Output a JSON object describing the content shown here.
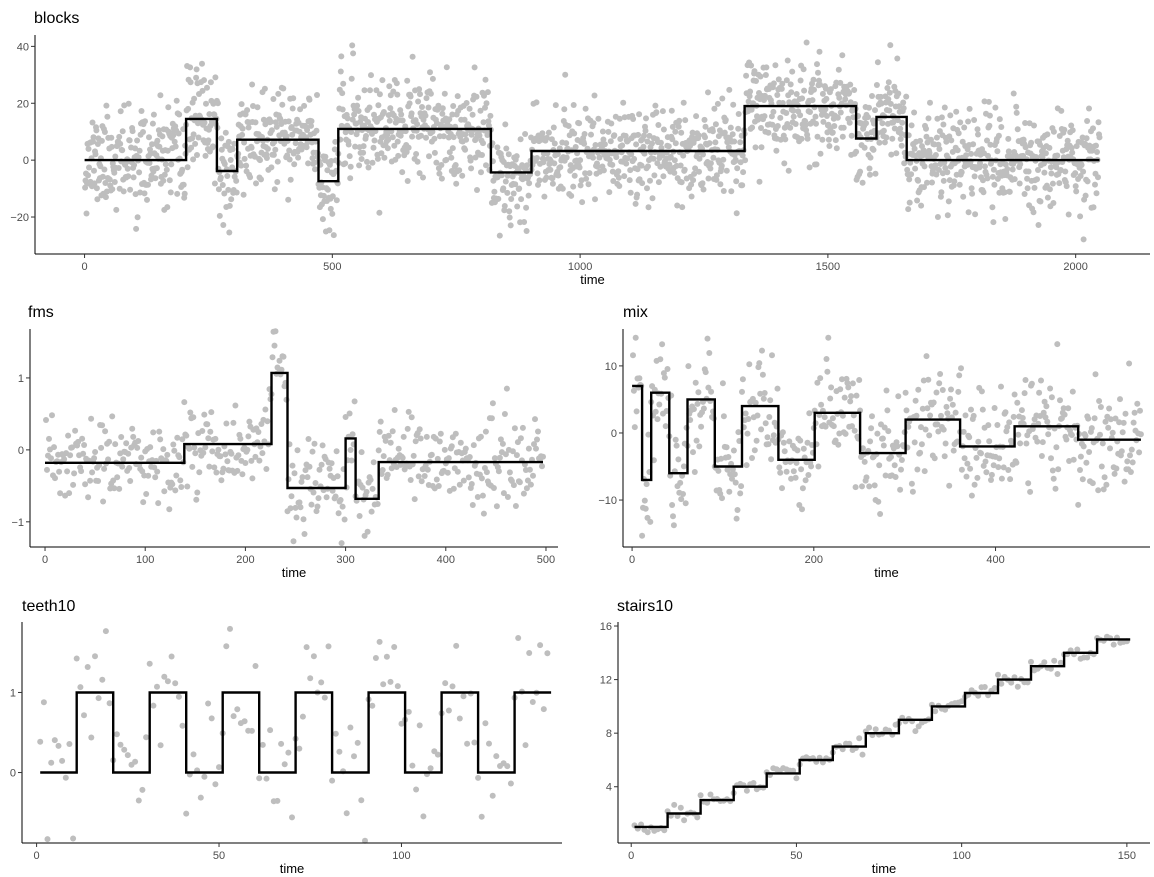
{
  "chart_data": [
    {
      "name": "blocks",
      "type": "scatter",
      "title": "blocks",
      "xlabel": "time",
      "ylabel": "",
      "xlim": [
        -100,
        2150
      ],
      "ylim": [
        -33,
        44
      ],
      "xticks": [
        0,
        500,
        1000,
        1500,
        2000
      ],
      "yticks": [
        -20,
        0,
        20,
        40
      ],
      "ytick_labels": [
        "−20",
        "0",
        "20",
        "40"
      ],
      "point_color": "#bebebe",
      "line_color": "#000000",
      "noise": {
        "n": 2048,
        "x_max": 2048,
        "sd": 8.5,
        "seed": 11
      },
      "truth": [
        {
          "x": [
            0,
            205
          ],
          "y": 0
        },
        {
          "x": [
            205,
            267
          ],
          "y": 14.5
        },
        {
          "x": [
            267,
            308
          ],
          "y": -3.8
        },
        {
          "x": [
            308,
            472
          ],
          "y": 7.2
        },
        {
          "x": [
            472,
            512
          ],
          "y": -7.4
        },
        {
          "x": [
            512,
            820
          ],
          "y": 11
        },
        {
          "x": [
            820,
            902
          ],
          "y": -4.3
        },
        {
          "x": [
            902,
            1332
          ],
          "y": 3.2
        },
        {
          "x": [
            1332,
            1557
          ],
          "y": 19
        },
        {
          "x": [
            1557,
            1598
          ],
          "y": 7.6
        },
        {
          "x": [
            1598,
            1659
          ],
          "y": 15.2
        },
        {
          "x": [
            1659,
            2048
          ],
          "y": 0
        }
      ]
    },
    {
      "name": "fms",
      "type": "scatter",
      "title": "fms",
      "xlabel": "time",
      "ylabel": "",
      "xlim": [
        -15,
        512
      ],
      "ylim": [
        -1.35,
        1.68
      ],
      "xticks": [
        0,
        100,
        200,
        300,
        400,
        500
      ],
      "yticks": [
        -1,
        0,
        1
      ],
      "ytick_labels": [
        "−1",
        "0",
        "1"
      ],
      "point_color": "#bebebe",
      "line_color": "#000000",
      "noise": {
        "n": 497,
        "x_max": 497,
        "sd": 0.3,
        "seed": 23
      },
      "truth": [
        {
          "x": [
            0,
            139
          ],
          "y": -0.18
        },
        {
          "x": [
            139,
            226
          ],
          "y": 0.08
        },
        {
          "x": [
            226,
            242
          ],
          "y": 1.07
        },
        {
          "x": [
            242,
            300
          ],
          "y": -0.53
        },
        {
          "x": [
            300,
            310
          ],
          "y": 0.16
        },
        {
          "x": [
            310,
            333
          ],
          "y": -0.68
        },
        {
          "x": [
            333,
            497
          ],
          "y": -0.17
        }
      ]
    },
    {
      "name": "mix",
      "type": "scatter",
      "title": "mix",
      "xlabel": "time",
      "ylabel": "",
      "xlim": [
        -10,
        570
      ],
      "ylim": [
        -17,
        15.5
      ],
      "xticks": [
        0,
        200,
        400
      ],
      "yticks": [
        -10,
        0,
        10
      ],
      "ytick_labels": [
        "−10",
        "0",
        "10"
      ],
      "point_color": "#bebebe",
      "line_color": "#000000",
      "noise": {
        "n": 560,
        "x_max": 560,
        "sd": 4,
        "seed": 37
      },
      "truth": [
        {
          "x": [
            0,
            11
          ],
          "y": 7
        },
        {
          "x": [
            11,
            21
          ],
          "y": -7
        },
        {
          "x": [
            21,
            41
          ],
          "y": 6
        },
        {
          "x": [
            41,
            61
          ],
          "y": -6
        },
        {
          "x": [
            61,
            91
          ],
          "y": 5
        },
        {
          "x": [
            91,
            121
          ],
          "y": -5
        },
        {
          "x": [
            121,
            161
          ],
          "y": 4
        },
        {
          "x": [
            161,
            201
          ],
          "y": -4
        },
        {
          "x": [
            201,
            251
          ],
          "y": 3
        },
        {
          "x": [
            251,
            301
          ],
          "y": -3
        },
        {
          "x": [
            301,
            361
          ],
          "y": 2
        },
        {
          "x": [
            361,
            421
          ],
          "y": -2
        },
        {
          "x": [
            421,
            491
          ],
          "y": 1
        },
        {
          "x": [
            491,
            560
          ],
          "y": -1
        }
      ]
    },
    {
      "name": "teeth10",
      "type": "scatter",
      "title": "teeth10",
      "xlabel": "time",
      "ylabel": "",
      "xlim": [
        -4,
        144
      ],
      "ylim": [
        -0.88,
        1.88
      ],
      "xticks": [
        0,
        50,
        100
      ],
      "yticks": [
        0,
        1
      ],
      "ytick_labels": [
        "0",
        "1"
      ],
      "point_color": "#bebebe",
      "line_color": "#000000",
      "noise": {
        "n": 140,
        "x_max": 140,
        "sd": 0.38,
        "seed": 53
      },
      "truth": [
        {
          "x": [
            1,
            11
          ],
          "y": 0
        },
        {
          "x": [
            11,
            21
          ],
          "y": 1
        },
        {
          "x": [
            21,
            31
          ],
          "y": 0
        },
        {
          "x": [
            31,
            41
          ],
          "y": 1
        },
        {
          "x": [
            41,
            51
          ],
          "y": 0
        },
        {
          "x": [
            51,
            61
          ],
          "y": 1
        },
        {
          "x": [
            61,
            71
          ],
          "y": 0
        },
        {
          "x": [
            71,
            81
          ],
          "y": 1
        },
        {
          "x": [
            81,
            91
          ],
          "y": 0
        },
        {
          "x": [
            91,
            101
          ],
          "y": 1
        },
        {
          "x": [
            101,
            111
          ],
          "y": 0
        },
        {
          "x": [
            111,
            121
          ],
          "y": 1
        },
        {
          "x": [
            121,
            131
          ],
          "y": 0
        },
        {
          "x": [
            131,
            141
          ],
          "y": 1
        }
      ]
    },
    {
      "name": "stairs10",
      "type": "scatter",
      "title": "stairs10",
      "xlabel": "time",
      "ylabel": "",
      "xlim": [
        -4,
        157
      ],
      "ylim": [
        -0.2,
        16.3
      ],
      "xticks": [
        0,
        50,
        100,
        150
      ],
      "yticks": [
        4,
        8,
        12,
        16
      ],
      "ytick_labels": [
        "4",
        "8",
        "12",
        "16"
      ],
      "point_color": "#bebebe",
      "line_color": "#000000",
      "noise": {
        "n": 150,
        "x_max": 150,
        "sd": 0.28,
        "seed": 71
      },
      "truth": [
        {
          "x": [
            1,
            11
          ],
          "y": 1
        },
        {
          "x": [
            11,
            21
          ],
          "y": 2
        },
        {
          "x": [
            21,
            31
          ],
          "y": 3
        },
        {
          "x": [
            31,
            41
          ],
          "y": 4
        },
        {
          "x": [
            41,
            51
          ],
          "y": 5
        },
        {
          "x": [
            51,
            61
          ],
          "y": 6
        },
        {
          "x": [
            61,
            71
          ],
          "y": 7
        },
        {
          "x": [
            71,
            81
          ],
          "y": 8
        },
        {
          "x": [
            81,
            91
          ],
          "y": 9
        },
        {
          "x": [
            91,
            101
          ],
          "y": 10
        },
        {
          "x": [
            101,
            111
          ],
          "y": 11
        },
        {
          "x": [
            111,
            121
          ],
          "y": 12
        },
        {
          "x": [
            121,
            131
          ],
          "y": 13
        },
        {
          "x": [
            131,
            141
          ],
          "y": 14
        },
        {
          "x": [
            141,
            151
          ],
          "y": 15
        }
      ]
    }
  ]
}
